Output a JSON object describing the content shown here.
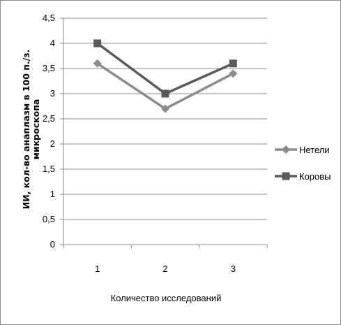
{
  "chart_data": {
    "type": "line",
    "x": [
      "1",
      "2",
      "3"
    ],
    "yticks": [
      "0",
      "0,5",
      "1",
      "1,5",
      "2",
      "2,5",
      "3",
      "3,5",
      "4",
      "4,5"
    ],
    "ylim": [
      0,
      4.5
    ],
    "xlabel": "Количество исследований",
    "ylabel_line1": "ИИ, кол-во анаплазм в 100 п./з.",
    "ylabel_line2": "микроскопа",
    "grid": true,
    "legend_position": "right",
    "series": [
      {
        "name": "Нетели",
        "values": [
          3.6,
          2.7,
          3.4
        ],
        "marker": "diamond",
        "color": "#8c8c8c"
      },
      {
        "name": "Коровы",
        "values": [
          4.0,
          3.0,
          3.6
        ],
        "marker": "square",
        "color": "#5a5a5a"
      }
    ]
  }
}
